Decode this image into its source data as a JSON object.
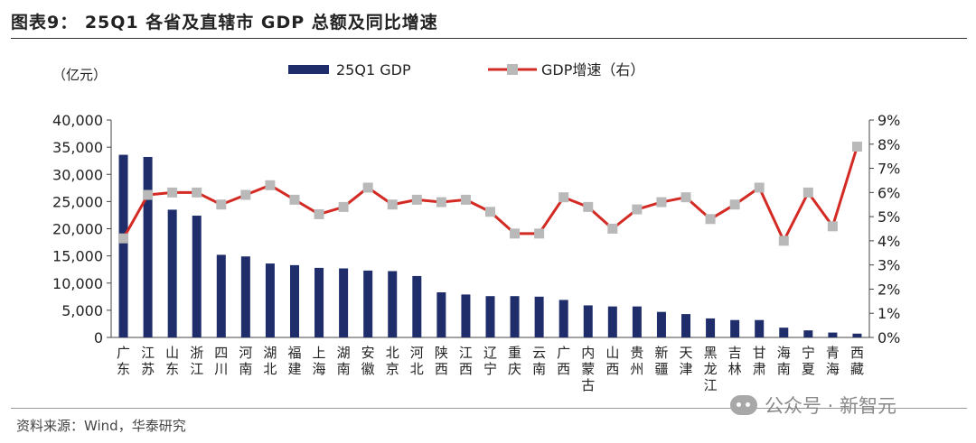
{
  "header": {
    "title": "图表9：  25Q1 各省及直辖市 GDP 总额及同比增速"
  },
  "footer": {
    "source": "资料来源：Wind，华泰研究",
    "watermark": "公众号 · 新智元"
  },
  "chart_data": {
    "type": "bar+line",
    "title": "25Q1 各省及直辖市 GDP 总额及同比增速",
    "left_unit": "（亿元）",
    "legend": {
      "bar": "25Q1 GDP",
      "line": "GDP增速（右）"
    },
    "colors": {
      "bar": "#1f2d6b",
      "line": "#d42a24",
      "marker": "#b9b9b9"
    },
    "categories": [
      "广东",
      "江苏",
      "山东",
      "浙江",
      "四川",
      "河南",
      "湖北",
      "福建",
      "上海",
      "湖南",
      "安徽",
      "北京",
      "河北",
      "陕西",
      "江西",
      "辽宁",
      "重庆",
      "云南",
      "广西",
      "内蒙古",
      "山西",
      "贵州",
      "新疆",
      "天津",
      "黑龙江",
      "吉林",
      "甘肃",
      "海南",
      "宁夏",
      "青海",
      "西藏"
    ],
    "series": [
      {
        "name": "25Q1 GDP",
        "axis": "left",
        "values": [
          33600,
          33200,
          23500,
          22400,
          15200,
          14900,
          13600,
          13300,
          12800,
          12700,
          12300,
          12200,
          11300,
          8300,
          7900,
          7600,
          7600,
          7500,
          6900,
          5900,
          5700,
          5700,
          4700,
          4300,
          3500,
          3200,
          3200,
          1800,
          1300,
          900,
          700
        ]
      },
      {
        "name": "GDP增速（右）",
        "axis": "right",
        "values": [
          4.1,
          5.9,
          6.0,
          6.0,
          5.5,
          5.9,
          6.3,
          5.7,
          5.1,
          5.4,
          6.2,
          5.5,
          5.7,
          5.6,
          5.7,
          5.2,
          4.3,
          4.3,
          5.8,
          5.4,
          4.5,
          5.3,
          5.6,
          5.8,
          4.9,
          5.5,
          6.2,
          4.0,
          6.0,
          4.6,
          7.9
        ]
      }
    ],
    "y_left": {
      "min": 0,
      "max": 40000,
      "ticks": [
        "0",
        "5,000",
        "10,000",
        "15,000",
        "20,000",
        "25,000",
        "30,000",
        "35,000",
        "40,000"
      ]
    },
    "y_right": {
      "min": 0,
      "max": 9,
      "ticks": [
        "0%",
        "1%",
        "2%",
        "3%",
        "4%",
        "5%",
        "6%",
        "7%",
        "8%",
        "9%"
      ]
    },
    "grid": false,
    "legend_position": "top"
  }
}
